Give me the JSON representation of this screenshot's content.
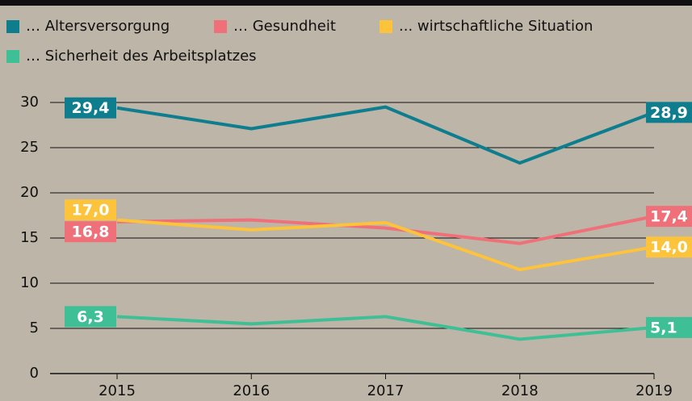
{
  "chart_data": {
    "type": "line",
    "x": [
      2015,
      2016,
      2017,
      2018,
      2019
    ],
    "series": [
      {
        "name": "… Altersversorgung",
        "color": "#0e7d8e",
        "values": [
          29.4,
          27.1,
          29.5,
          23.3,
          28.9
        ],
        "value_labels": [
          "29,4",
          null,
          null,
          null,
          "28,9"
        ]
      },
      {
        "name": "… Gesundheit",
        "color": "#f0707a",
        "values": [
          16.8,
          17.0,
          16.1,
          14.4,
          17.4
        ],
        "value_labels": [
          "16,8",
          null,
          null,
          null,
          "17,4"
        ]
      },
      {
        "name": "... wirtschaftliche Situation",
        "color": "#fcc33b",
        "values": [
          17.0,
          15.9,
          16.7,
          11.5,
          14.0
        ],
        "value_labels": [
          "17,0",
          null,
          null,
          null,
          "14,0"
        ]
      },
      {
        "name": "… Sicherheit des Arbeitsplatzes",
        "color": "#3fbf95",
        "values": [
          6.3,
          5.5,
          6.3,
          3.8,
          5.1
        ],
        "value_labels": [
          "6,3",
          null,
          null,
          null,
          "5,1"
        ]
      }
    ],
    "xlim": [
      2014.5,
      2019
    ],
    "xticks": [
      2015,
      2016,
      2017,
      2018,
      2019
    ],
    "ylim": [
      0,
      30
    ],
    "yticks": [
      0,
      5,
      10,
      15,
      20,
      25,
      30
    ],
    "grid": true
  }
}
